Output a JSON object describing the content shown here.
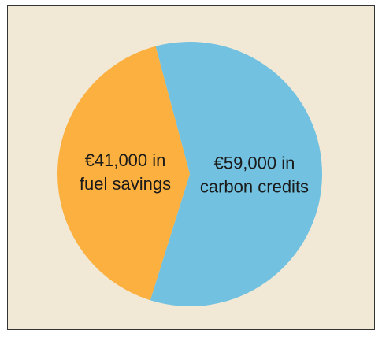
{
  "chart_data": {
    "type": "pie",
    "categories": [
      "carbon credits",
      "fuel savings"
    ],
    "values": [
      59000,
      41000
    ],
    "value_labels": [
      "€59,000 in",
      "€41,000 in"
    ],
    "colors": [
      "#72c1e0",
      "#fbb040"
    ]
  }
}
